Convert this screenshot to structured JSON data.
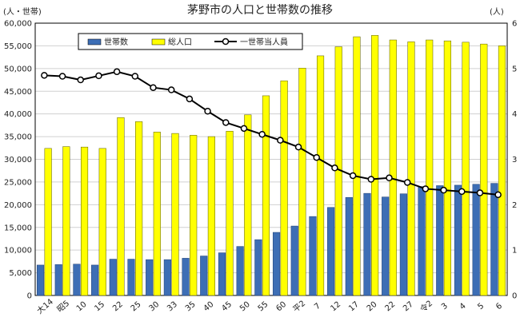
{
  "chart_data": {
    "type": "bar",
    "title": "茅野市の人口と世帯数の推移",
    "y_unit_left": "(人・世帯)",
    "y_unit_right": "(人)",
    "categories": [
      "大14",
      "昭5",
      "10",
      "15",
      "22",
      "25",
      "30",
      "33",
      "35",
      "40",
      "45",
      "50",
      "55",
      "60",
      "平2",
      "7",
      "12",
      "17",
      "20",
      "22",
      "27",
      "令2",
      "3",
      "4",
      "5",
      "6"
    ],
    "ylim_left": [
      0,
      60000
    ],
    "yticks_left": [
      "0",
      "5,000",
      "10,000",
      "15,000",
      "20,000",
      "25,000",
      "30,000",
      "35,000",
      "40,000",
      "45,000",
      "50,000",
      "55,000",
      "60,000"
    ],
    "ylim_right": [
      0,
      6
    ],
    "yticks_right": [
      "0",
      "1",
      "2",
      "3",
      "4",
      "5",
      "6"
    ],
    "grid": true,
    "legend_position": "top-center",
    "series": [
      {
        "name": "世帯数",
        "type": "bar",
        "axis": "left",
        "color": "#3d6eb5",
        "values": [
          6700,
          6800,
          6900,
          6700,
          8000,
          8000,
          7900,
          7900,
          8200,
          8700,
          9400,
          10800,
          12300,
          13900,
          15300,
          17400,
          19400,
          21600,
          22500,
          21700,
          22400,
          24000,
          24200,
          24300,
          24500,
          24700
        ]
      },
      {
        "name": "総人口",
        "type": "bar",
        "axis": "left",
        "color": "#ffff00",
        "values": [
          32400,
          32800,
          32700,
          32400,
          39200,
          38300,
          36000,
          35700,
          35300,
          35000,
          36200,
          39800,
          44000,
          47300,
          50100,
          52800,
          54800,
          57000,
          57300,
          56300,
          55900,
          56300,
          56100,
          55800,
          55400,
          55000
        ]
      },
      {
        "name": "一世帯当人員",
        "type": "line",
        "axis": "right",
        "color": "#000000",
        "values": [
          4.85,
          4.83,
          4.75,
          4.84,
          4.93,
          4.83,
          4.58,
          4.53,
          4.33,
          4.06,
          3.81,
          3.68,
          3.55,
          3.42,
          3.27,
          3.04,
          2.81,
          2.64,
          2.56,
          2.59,
          2.49,
          2.35,
          2.32,
          2.29,
          2.26,
          2.22
        ]
      }
    ]
  }
}
